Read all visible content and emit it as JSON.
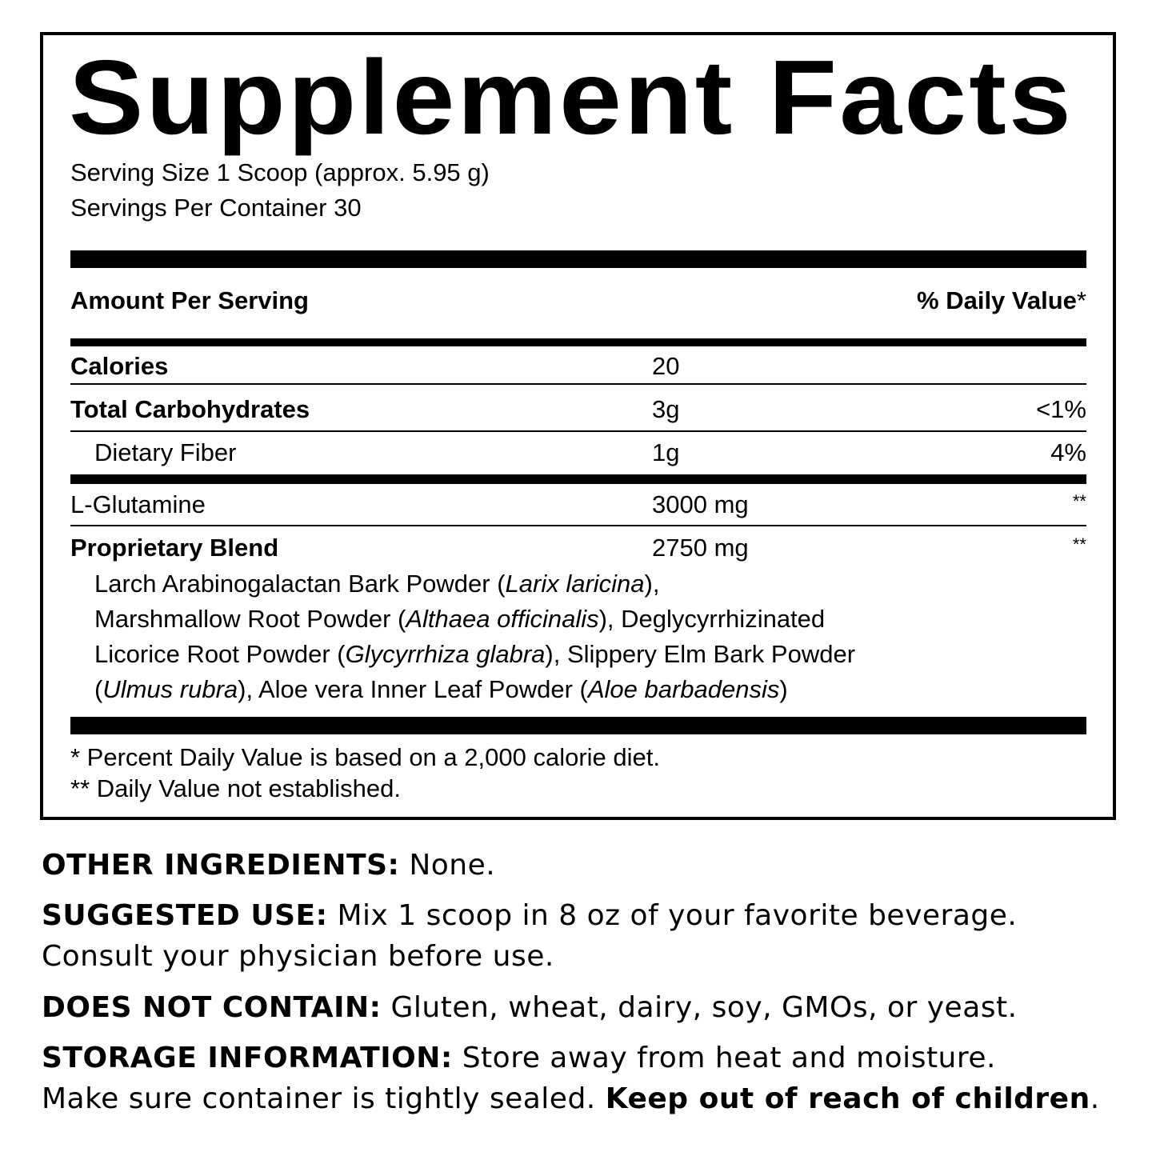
{
  "title": "Supplement Facts",
  "serving_size": "Serving Size 1 Scoop (approx. 5.95 g)",
  "servings_per_container": "Servings Per Container 30",
  "header": {
    "amount": "Amount Per Serving",
    "daily_value": "% Daily Value",
    "daily_value_mark": "*"
  },
  "rows": [
    {
      "name": "Calories",
      "amount": "20",
      "dv": ""
    },
    {
      "name": "Total Carbohydrates",
      "amount": "3g",
      "dv": "<1%"
    },
    {
      "name": "Dietary Fiber",
      "amount": "1g",
      "dv": "4%"
    },
    {
      "name": "L-Glutamine",
      "amount": "3000 mg",
      "dv": "**"
    },
    {
      "name": "Proprietary Blend",
      "amount": "2750 mg",
      "dv": "**"
    }
  ],
  "blend_lines": [
    [
      "Larch Arabinogalactan Bark Powder (",
      "Larix laricina",
      "),",
      "",
      ""
    ],
    [
      "Marshmallow Root Powder (",
      "Althaea officinalis",
      "), Deglycyrrhizinated",
      "",
      ""
    ],
    [
      "Licorice Root Powder (",
      "Glycyrrhiza glabra",
      "), Slippery Elm Bark Powder",
      "",
      ""
    ],
    [
      "(",
      "Ulmus rubra",
      "), Aloe vera Inner Leaf Powder (",
      "Aloe barbadensis",
      ")"
    ]
  ],
  "footnotes": [
    "* Percent Daily Value is based on a 2,000 calorie diet.",
    "** Daily Value not established."
  ],
  "other_ingredients": {
    "label": "OTHER INGREDIENTS:",
    "text": " None."
  },
  "suggested_use": {
    "label": "SUGGESTED USE:",
    "text": " Mix 1 scoop in 8 oz of your favorite beverage.",
    "line2": "Consult your physician before use."
  },
  "does_not_contain": {
    "label": "DOES NOT CONTAIN:",
    "text": " Gluten, wheat, dairy, soy, GMOs, or yeast."
  },
  "storage": {
    "label": "STORAGE INFORMATION:",
    "text": " Store away from heat and moisture.",
    "line2": "Make sure container is tightly sealed. ",
    "warning": "Keep out of reach of children",
    "end": "."
  }
}
